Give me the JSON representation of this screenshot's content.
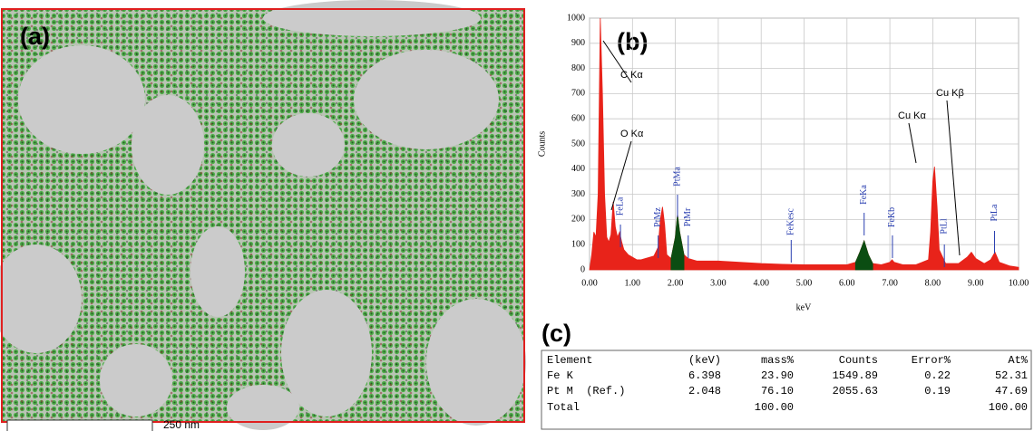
{
  "panels": {
    "a": "(a)",
    "b": "(b)",
    "c": "(c)"
  },
  "scale_bar": "250 nm",
  "chart_data": {
    "type": "area",
    "ylabel": "Counts",
    "xlabel": "keV",
    "xlim": [
      0,
      10
    ],
    "ylim": [
      0,
      1000
    ],
    "xticks": [
      {
        "value": 0,
        "label": "0.00"
      },
      {
        "value": 1,
        "label": "1.00"
      },
      {
        "value": 2,
        "label": "2.00"
      },
      {
        "value": 3,
        "label": "3.00"
      },
      {
        "value": 4,
        "label": "4.00"
      },
      {
        "value": 5,
        "label": "5.00"
      },
      {
        "value": 6,
        "label": "6.00"
      },
      {
        "value": 7,
        "label": "7.00"
      },
      {
        "value": 8,
        "label": "8.00"
      },
      {
        "value": 9,
        "label": "9.00"
      },
      {
        "value": 10,
        "label": "10.00"
      }
    ],
    "yticks": [
      0,
      100,
      200,
      300,
      400,
      500,
      600,
      700,
      800,
      900,
      1000
    ],
    "grid": true,
    "series": [
      {
        "color": "#e8231a",
        "x": [
          0,
          0.05,
          0.1,
          0.15,
          0.2,
          0.25,
          0.3,
          0.35,
          0.4,
          0.45,
          0.5,
          0.55,
          0.6,
          0.65,
          0.7,
          0.75,
          0.8,
          0.9,
          1.0,
          1.1,
          1.2,
          1.3,
          1.4,
          1.5,
          1.6,
          1.65,
          1.7,
          1.75,
          1.8,
          1.9,
          2.0,
          2.05,
          2.1,
          2.2,
          2.3,
          2.5,
          3.0,
          3.5,
          4.0,
          4.5,
          5.0,
          5.5,
          6.0,
          6.2,
          6.3,
          6.4,
          6.5,
          6.6,
          6.8,
          7.0,
          7.05,
          7.1,
          7.3,
          7.6,
          7.9,
          7.95,
          8.0,
          8.04,
          8.1,
          8.15,
          8.3,
          8.6,
          8.8,
          8.9,
          9.0,
          9.2,
          9.35,
          9.45,
          9.55,
          9.8,
          10.0
        ],
        "values": [
          0,
          60,
          150,
          130,
          300,
          1000,
          700,
          300,
          130,
          110,
          140,
          270,
          170,
          130,
          150,
          110,
          80,
          60,
          50,
          40,
          40,
          45,
          50,
          55,
          90,
          200,
          250,
          180,
          60,
          45,
          130,
          220,
          150,
          60,
          45,
          35,
          35,
          30,
          25,
          22,
          20,
          20,
          20,
          30,
          70,
          115,
          60,
          25,
          20,
          30,
          40,
          30,
          20,
          20,
          40,
          150,
          350,
          410,
          250,
          80,
          25,
          25,
          50,
          70,
          45,
          25,
          40,
          70,
          30,
          15,
          10
        ]
      },
      {
        "color": "#0b4d12",
        "x": [
          1.9,
          2.0,
          2.05,
          2.1,
          2.2
        ],
        "values": [
          45,
          130,
          220,
          150,
          60
        ]
      },
      {
        "color": "#0b4d12",
        "x": [
          6.2,
          6.3,
          6.4,
          6.5,
          6.6
        ],
        "values": [
          30,
          70,
          115,
          60,
          25
        ]
      }
    ],
    "peak_labels": [
      {
        "text": "FeLa",
        "x": 0.72
      },
      {
        "text": "PtMz",
        "x": 1.6
      },
      {
        "text": "PtMa",
        "x": 2.05
      },
      {
        "text": "PtMr",
        "x": 2.3
      },
      {
        "text": "FeKesc",
        "x": 4.7
      },
      {
        "text": "FeKa",
        "x": 6.4
      },
      {
        "text": "FeKb",
        "x": 7.06
      },
      {
        "text": "PtLl",
        "x": 8.27
      },
      {
        "text": "PtLa",
        "x": 9.44
      }
    ],
    "annotations": [
      "C Kα",
      "O Kα",
      "Cu Kα",
      "Cu Kβ"
    ]
  },
  "table": {
    "header": [
      "Element",
      "(keV)",
      "mass%",
      "Counts",
      "Error%",
      "At%"
    ],
    "rows": [
      [
        "Fe K",
        "6.398",
        "23.90",
        "1549.89",
        "0.22",
        "52.31"
      ],
      [
        "Pt M  (Ref.)",
        "2.048",
        "76.10",
        "2055.63",
        "0.19",
        "47.69"
      ],
      [
        "Total",
        null,
        "100.00",
        null,
        null,
        "100.00"
      ]
    ]
  }
}
